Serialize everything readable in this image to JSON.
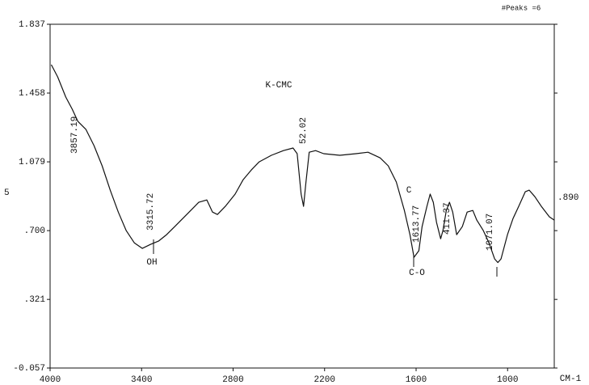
{
  "chart_data": {
    "type": "line",
    "title": "K-CMC",
    "header_note": "#Peaks =6",
    "x_unit": "CM-1",
    "left_label": "5",
    "right_label": ".890",
    "annotations": [
      "3857.19",
      "3315.72",
      "52.02",
      "1613.77",
      "411.37",
      "1071.07",
      "OH",
      "C",
      "C-O"
    ],
    "x": [
      3992,
      3950,
      3897,
      3855,
      3818,
      3765,
      3712,
      3659,
      3606,
      3553,
      3501,
      3448,
      3395,
      3342,
      3289,
      3236,
      3183,
      3104,
      3025,
      2972,
      2935,
      2903,
      2851,
      2787,
      2734,
      2681,
      2629,
      2549,
      2470,
      2407,
      2380,
      2354,
      2338,
      2322,
      2301,
      2259,
      2206,
      2100,
      1994,
      1915,
      1836,
      1783,
      1730,
      1677,
      1640,
      1614,
      1582,
      1561,
      1529,
      1508,
      1487,
      1466,
      1439,
      1424,
      1402,
      1381,
      1360,
      1334,
      1297,
      1265,
      1228,
      1202,
      1159,
      1122,
      1085,
      1064,
      1043,
      1001,
      964,
      927,
      884,
      858,
      821,
      779,
      726,
      694
    ],
    "series": [
      {
        "color": "#111111",
        "values": [
          1.614,
          1.547,
          1.436,
          1.369,
          1.302,
          1.257,
          1.168,
          1.057,
          0.923,
          0.802,
          0.7,
          0.633,
          0.602,
          0.624,
          0.642,
          0.678,
          0.722,
          0.789,
          0.856,
          0.869,
          0.802,
          0.789,
          0.834,
          0.901,
          0.981,
          1.034,
          1.079,
          1.115,
          1.141,
          1.155,
          1.124,
          0.901,
          0.834,
          0.968,
          1.132,
          1.141,
          1.124,
          1.115,
          1.124,
          1.132,
          1.101,
          1.057,
          0.968,
          0.811,
          0.678,
          0.553,
          0.589,
          0.722,
          0.834,
          0.901,
          0.856,
          0.745,
          0.655,
          0.7,
          0.811,
          0.856,
          0.802,
          0.678,
          0.722,
          0.802,
          0.811,
          0.758,
          0.7,
          0.633,
          0.544,
          0.524,
          0.544,
          0.678,
          0.767,
          0.834,
          0.914,
          0.923,
          0.887,
          0.834,
          0.776,
          0.758
        ]
      }
    ],
    "xlim": [
      4000,
      694
    ],
    "xticks": [
      4000,
      3400,
      2800,
      2200,
      1600,
      1000
    ],
    "ylim": [
      -0.057,
      1.837
    ],
    "yticks": [
      -0.057,
      {
        "value": 0.321,
        "label": ".321"
      },
      {
        "value": 0.7,
        "label": ".700"
      },
      1.079,
      1.458,
      1.837
    ],
    "grid": false
  }
}
